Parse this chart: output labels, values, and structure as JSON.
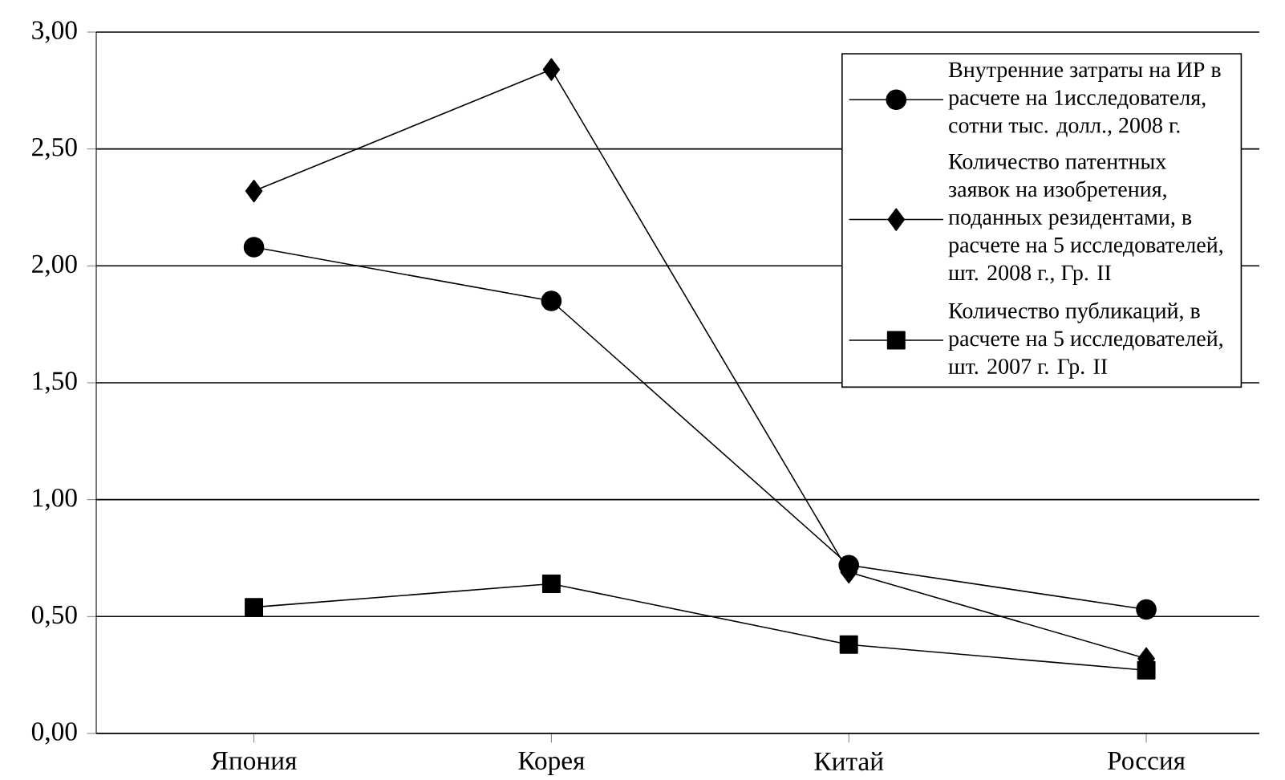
{
  "chart_data": {
    "type": "line",
    "categories": [
      "Япония",
      "Корея",
      "Китай",
      "Россия"
    ],
    "series": [
      {
        "name": "Внутренние затраты на ИР в расчете на 1исследователя, сотни тыс. долл., 2008 г.",
        "color": "#000000",
        "marker": "circle",
        "values": [
          2.08,
          1.85,
          0.72,
          0.53
        ]
      },
      {
        "name": "Количество патентных заявок на изобретения, поданных резидентами, в расчете на 5 исследователей, шт. 2008 г., Гр. II",
        "color": "#000000",
        "marker": "diamond",
        "values": [
          2.32,
          2.84,
          0.69,
          0.32
        ]
      },
      {
        "name": "Количество публикаций, в расчете на 5 исследователей, шт. 2007 г. Гр. II",
        "color": "#000000",
        "marker": "square",
        "values": [
          0.54,
          0.64,
          0.38,
          0.27
        ]
      }
    ],
    "ylim": [
      0,
      3
    ],
    "yticks": [
      {
        "value": 0,
        "label": "0,00"
      },
      {
        "value": 0.5,
        "label": "0,50"
      },
      {
        "value": 1,
        "label": "1,00"
      },
      {
        "value": 1.5,
        "label": "1,50"
      },
      {
        "value": 2,
        "label": "2,00"
      },
      {
        "value": 2.5,
        "label": "2,50"
      },
      {
        "value": 3,
        "label": "3,00"
      }
    ],
    "grid": "y",
    "legend": "top right",
    "line_style": "solid"
  }
}
